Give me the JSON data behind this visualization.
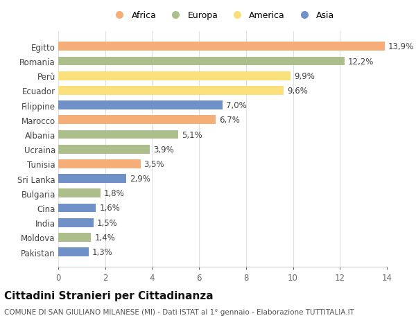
{
  "categories": [
    "Egitto",
    "Romania",
    "Perù",
    "Ecuador",
    "Filippine",
    "Marocco",
    "Albania",
    "Ucraina",
    "Tunisia",
    "Sri Lanka",
    "Bulgaria",
    "Cina",
    "India",
    "Moldova",
    "Pakistan"
  ],
  "values": [
    13.9,
    12.2,
    9.9,
    9.6,
    7.0,
    6.7,
    5.1,
    3.9,
    3.5,
    2.9,
    1.8,
    1.6,
    1.5,
    1.4,
    1.3
  ],
  "labels": [
    "13,9%",
    "12,2%",
    "9,9%",
    "9,6%",
    "7,0%",
    "6,7%",
    "5,1%",
    "3,9%",
    "3,5%",
    "2,9%",
    "1,8%",
    "1,6%",
    "1,5%",
    "1,4%",
    "1,3%"
  ],
  "colors": [
    "#F5AE78",
    "#ABBE8C",
    "#FAE07A",
    "#FAE07A",
    "#7090C8",
    "#F5AE78",
    "#ABBE8C",
    "#ABBE8C",
    "#F5AE78",
    "#7090C8",
    "#ABBE8C",
    "#7090C8",
    "#7090C8",
    "#ABBE8C",
    "#7090C8"
  ],
  "legend_labels": [
    "Africa",
    "Europa",
    "America",
    "Asia"
  ],
  "legend_colors": [
    "#F5AE78",
    "#ABBE8C",
    "#FAE07A",
    "#7090C8"
  ],
  "title": "Cittadini Stranieri per Cittadinanza",
  "subtitle": "COMUNE DI SAN GIULIANO MILANESE (MI) - Dati ISTAT al 1° gennaio - Elaborazione TUTTITALIA.IT",
  "xlim": [
    0,
    14
  ],
  "xticks": [
    0,
    2,
    4,
    6,
    8,
    10,
    12,
    14
  ],
  "background_color": "#ffffff",
  "plot_bg_color": "#ffffff",
  "grid_color": "#e0e0e0",
  "label_fontsize": 8.5,
  "ytick_fontsize": 8.5,
  "xtick_fontsize": 8.5,
  "title_fontsize": 11,
  "subtitle_fontsize": 7.5,
  "bar_height": 0.6
}
